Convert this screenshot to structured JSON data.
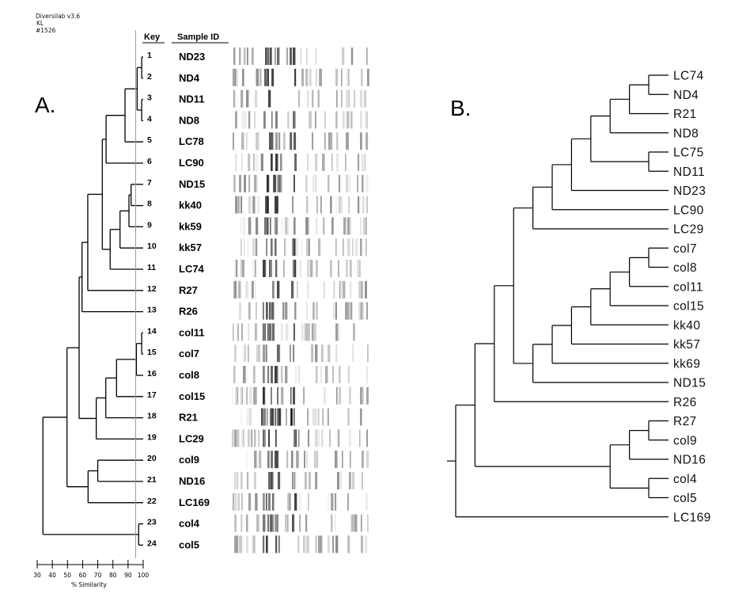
{
  "header": {
    "software": "Diversilab v3.6",
    "initials": "KL",
    "run": "#1526"
  },
  "panel_a": {
    "label": "A.",
    "key_header": "Key",
    "sample_header": "Sample ID",
    "axis": {
      "label": "% Similarity",
      "ticks": [
        30,
        40,
        50,
        60,
        70,
        80,
        90,
        100
      ],
      "range": [
        30,
        100
      ]
    },
    "cutoff_similarity": 95,
    "leaves": [
      {
        "key": "1",
        "id": "ND23"
      },
      {
        "key": "2",
        "id": "ND4"
      },
      {
        "key": "3",
        "id": "ND11"
      },
      {
        "key": "4",
        "id": "ND8"
      },
      {
        "key": "5",
        "id": "LC78"
      },
      {
        "key": "6",
        "id": "LC90"
      },
      {
        "key": "7",
        "id": "ND15"
      },
      {
        "key": "8",
        "id": "kk40"
      },
      {
        "key": "9",
        "id": "kk59"
      },
      {
        "key": "10",
        "id": "kk57"
      },
      {
        "key": "11",
        "id": "LC74"
      },
      {
        "key": "12",
        "id": "R27"
      },
      {
        "key": "13",
        "id": "R26"
      },
      {
        "key": "14",
        "id": "col11"
      },
      {
        "key": "15",
        "id": "col7"
      },
      {
        "key": "16",
        "id": "col8"
      },
      {
        "key": "17",
        "id": "col15"
      },
      {
        "key": "18",
        "id": "R21"
      },
      {
        "key": "19",
        "id": "LC29"
      },
      {
        "key": "20",
        "id": "col9"
      },
      {
        "key": "21",
        "id": "ND16"
      },
      {
        "key": "22",
        "id": "LC169"
      },
      {
        "key": "23",
        "id": "col4"
      },
      {
        "key": "24",
        "id": "col5"
      }
    ],
    "tree": {
      "sim": 33.8,
      "children": [
        {
          "sim": 49.7,
          "children": [
            {
              "sim": 57.7,
              "children": [
                {
                  "sim": 59.6,
                  "children": [
                    {
                      "sim": 63.4,
                      "children": [
                        {
                          "sim": 73,
                          "children": [
                            {
                              "sim": 75.5,
                              "children": [
                                {
                                  "sim": 88,
                                  "children": [
                                    {
                                      "sim": 96,
                                      "children": [
                                        {
                                          "sim": 99,
                                          "children": [
                                            1,
                                            2
                                          ]
                                        },
                                        {
                                          "sim": 99,
                                          "children": [
                                            3,
                                            4
                                          ]
                                        }
                                      ]
                                    },
                                    5
                                  ]
                                },
                                6
                              ]
                            },
                            {
                              "sim": 78.2,
                              "children": [
                                {
                                  "sim": 84.7,
                                  "children": [
                                    {
                                      "sim": 90.6,
                                      "children": [
                                        {
                                          "sim": 92,
                                          "children": [
                                            7,
                                            8
                                          ]
                                        },
                                        9
                                      ]
                                    },
                                    10
                                  ]
                                },
                                11
                              ]
                            }
                          ]
                        },
                        12
                      ]
                    },
                    13
                  ]
                },
                {
                  "sim": 69,
                  "children": [
                    {
                      "sim": 75.3,
                      "children": [
                        {
                          "sim": 82.4,
                          "children": [
                            {
                              "sim": 95.5,
                              "children": [
                                {
                                  "sim": 99,
                                  "children": [
                                    14,
                                    15
                                  ]
                                },
                                16
                              ]
                            },
                            17
                          ]
                        },
                        18
                      ]
                    },
                    19
                  ]
                }
              ]
            },
            {
              "sim": 63.6,
              "children": [
                {
                  "sim": 70,
                  "children": [
                    20,
                    21
                  ]
                },
                22
              ]
            }
          ]
        },
        {
          "sim": 97,
          "children": [
            23,
            24
          ]
        }
      ]
    }
  },
  "panel_b": {
    "label": "B.",
    "tree": [
      [
        [
          [
            [
              [
                [
                  [
                    [
                      [
                        [
                          "LC74",
                          "ND4"
                        ],
                        "R21"
                      ],
                      "ND8"
                    ],
                    [
                      "LC75",
                      "ND11"
                    ]
                  ],
                  "ND23"
                ],
                "LC90"
              ],
              "LC29"
            ],
            [
              [
                [
                  [
                    [
                      [
                        [
                          "col7",
                          "col8"
                        ],
                        "col11"
                      ],
                      "col15"
                    ],
                    "kk40"
                  ],
                  "kk57"
                ],
                "kk69"
              ],
              "ND15"
            ]
          ],
          "R26"
        ],
        [
          [
            [
              "R27",
              "col9"
            ],
            "ND16"
          ],
          [
            "col4",
            "col5"
          ]
        ]
      ],
      "LC169"
    ]
  }
}
